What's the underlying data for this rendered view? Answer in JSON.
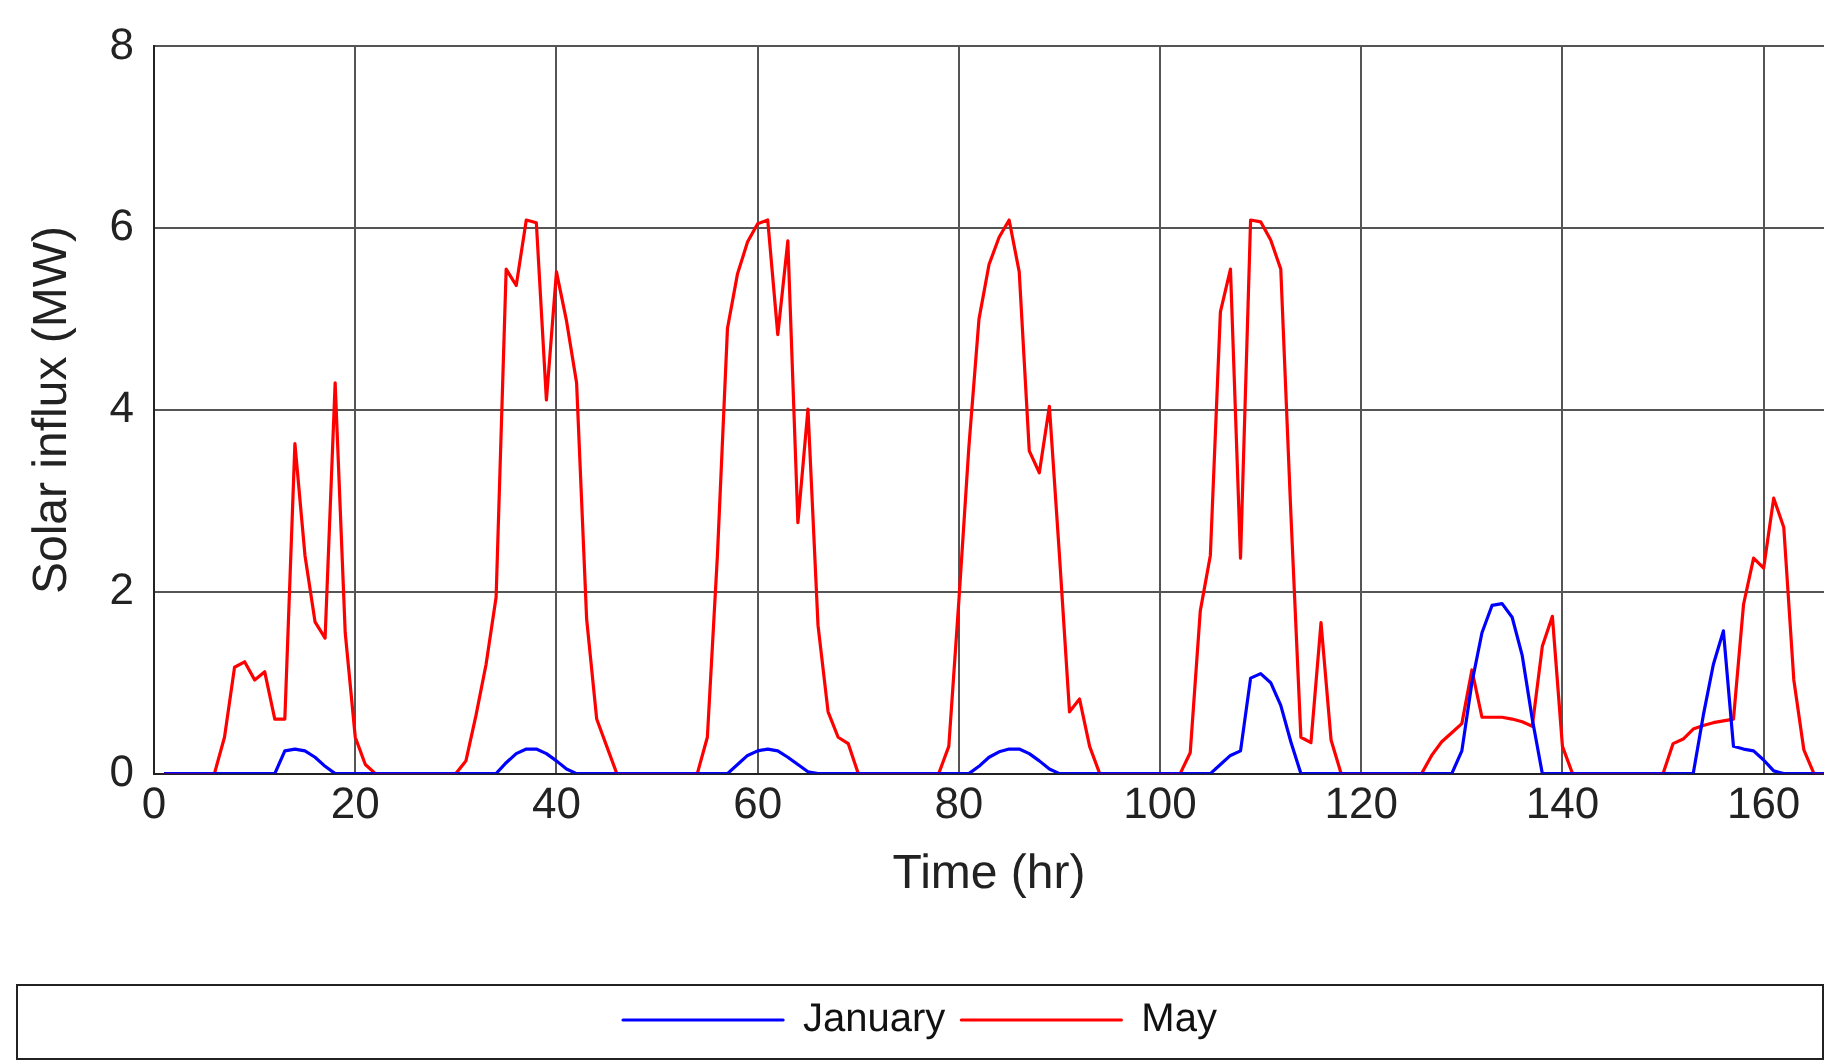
{
  "chart_data": {
    "type": "line",
    "xlabel": "Time (hr)",
    "ylabel": "Solar influx (MW)",
    "xlim": [
      0,
      166
    ],
    "xticks": [
      0,
      20,
      40,
      60,
      80,
      100,
      120,
      140,
      160
    ],
    "ylim": [
      0,
      8
    ],
    "yticks": [
      0,
      2,
      4,
      6,
      8
    ],
    "grid": true,
    "legend": "bottom",
    "marker": "none",
    "line_style": "solid",
    "series": [
      {
        "name": "January",
        "color": "#0000ff",
        "x": [
          1,
          12,
          13,
          14,
          15,
          16,
          17,
          18,
          34,
          35,
          36,
          37,
          38,
          39,
          40,
          41,
          42,
          57,
          58,
          59,
          60,
          61,
          62,
          63,
          64,
          65,
          66,
          81,
          82,
          83,
          84,
          85,
          86,
          87,
          88,
          89,
          90,
          105,
          106,
          107,
          108,
          109,
          110,
          111,
          112,
          113,
          114,
          129,
          130,
          131,
          132,
          133,
          134,
          135,
          136,
          137,
          138,
          153,
          154,
          155,
          156,
          157,
          158,
          159,
          160,
          161,
          162,
          166
        ],
        "values": [
          0,
          0,
          0.25,
          0.27,
          0.25,
          0.18,
          0.08,
          0,
          0,
          0.12,
          0.22,
          0.27,
          0.27,
          0.22,
          0.14,
          0.05,
          0,
          0,
          0.1,
          0.2,
          0.25,
          0.27,
          0.25,
          0.18,
          0.1,
          0.02,
          0,
          0,
          0.08,
          0.18,
          0.24,
          0.27,
          0.27,
          0.22,
          0.14,
          0.05,
          0,
          0,
          0.1,
          0.2,
          0.25,
          1.05,
          1.1,
          1.0,
          0.75,
          0.35,
          0,
          0,
          0.25,
          1.0,
          1.55,
          1.85,
          1.87,
          1.72,
          1.3,
          0.6,
          0,
          0,
          0.64,
          1.2,
          1.57,
          0.3,
          0.27,
          0.25,
          0.15,
          0.03,
          0,
          0
        ]
      },
      {
        "name": "May",
        "color": "#ff0000",
        "x": [
          1,
          6,
          7,
          8,
          9,
          10,
          11,
          12,
          13,
          14,
          15,
          16,
          17,
          18,
          19,
          20,
          21,
          22,
          30,
          31,
          32,
          33,
          34,
          35,
          36,
          37,
          38,
          39,
          40,
          41,
          42,
          43,
          44,
          45,
          46,
          54,
          55,
          56,
          57,
          58,
          59,
          60,
          61,
          62,
          63,
          64,
          65,
          66,
          67,
          68,
          69,
          70,
          78,
          79,
          80,
          81,
          82,
          83,
          84,
          85,
          86,
          87,
          88,
          89,
          90,
          91,
          92,
          93,
          94,
          102,
          103,
          104,
          105,
          106,
          107,
          108,
          109,
          110,
          111,
          112,
          113,
          114,
          115,
          116,
          117,
          118,
          126,
          127,
          128,
          129,
          130,
          131,
          132,
          133,
          134,
          135,
          136,
          137,
          138,
          139,
          140,
          141,
          150,
          151,
          152,
          153,
          154,
          155,
          156,
          157,
          158,
          159,
          160,
          161,
          162,
          163,
          164,
          165,
          166
        ],
        "values": [
          0,
          0,
          0.4,
          1.17,
          1.23,
          1.03,
          1.12,
          0.6,
          0.6,
          3.63,
          2.4,
          1.67,
          1.49,
          4.3,
          1.55,
          0.4,
          0.1,
          0,
          0,
          0.14,
          0.64,
          1.2,
          1.94,
          5.55,
          5.37,
          6.09,
          6.06,
          4.11,
          5.52,
          4.98,
          4.3,
          1.7,
          0.6,
          0.3,
          0,
          0,
          0.4,
          2.4,
          4.9,
          5.5,
          5.85,
          6.05,
          6.09,
          4.83,
          5.86,
          2.76,
          4.01,
          1.63,
          0.68,
          0.4,
          0.33,
          0,
          0,
          0.3,
          1.9,
          3.6,
          5.0,
          5.6,
          5.9,
          6.09,
          5.52,
          3.55,
          3.31,
          4.04,
          2.4,
          0.68,
          0.82,
          0.3,
          0,
          0,
          0.23,
          1.79,
          2.4,
          5.08,
          5.55,
          2.37,
          6.09,
          6.07,
          5.87,
          5.55,
          2.87,
          0.4,
          0.34,
          1.66,
          0.37,
          0,
          0,
          0.2,
          0.35,
          0.45,
          0.55,
          1.14,
          0.62,
          0.62,
          0.62,
          0.6,
          0.57,
          0.52,
          1.4,
          1.73,
          0.3,
          0,
          0,
          0.33,
          0.38,
          0.49,
          0.53,
          0.56,
          0.58,
          0.6,
          1.86,
          2.37,
          2.26,
          3.03,
          2.71,
          1.03,
          0.26,
          0,
          0
        ]
      }
    ]
  }
}
